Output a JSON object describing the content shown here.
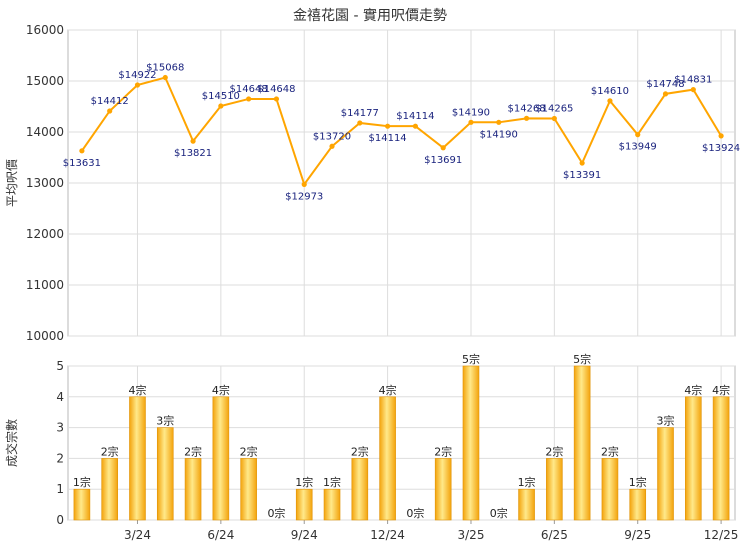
{
  "chart_data": [
    {
      "type": "line",
      "title": "金禧花園 - 實用呎價走勢",
      "ylabel": "平均呎價",
      "ylim": [
        10000,
        16000
      ],
      "yticks": [
        10000,
        11000,
        12000,
        13000,
        14000,
        15000,
        16000
      ],
      "grid": true,
      "color": "#FFA500",
      "series": [
        {
          "values": [
            13631,
            14412,
            14922,
            15068,
            13821,
            14510,
            14648,
            14648,
            12973,
            13720,
            14177,
            14114,
            14114,
            13691,
            14190,
            14190,
            14268,
            14265,
            13391,
            14610,
            13949,
            14748,
            14831,
            13924
          ]
        }
      ]
    },
    {
      "type": "bar",
      "ylabel": "成交宗數",
      "ylim": [
        0,
        5
      ],
      "yticks": [
        0,
        1,
        2,
        3,
        4,
        5
      ],
      "grid": true,
      "color": "#FFA500",
      "x_tick_labels": [
        "3/24",
        "6/24",
        "9/24",
        "12/24",
        "3/25",
        "6/25",
        "9/25",
        "12/25"
      ],
      "value_suffix": "宗",
      "values": [
        1,
        2,
        4,
        3,
        2,
        4,
        2,
        0,
        1,
        1,
        2,
        4,
        0,
        2,
        5,
        0,
        1,
        2,
        5,
        2,
        1,
        3,
        4,
        4
      ]
    }
  ]
}
